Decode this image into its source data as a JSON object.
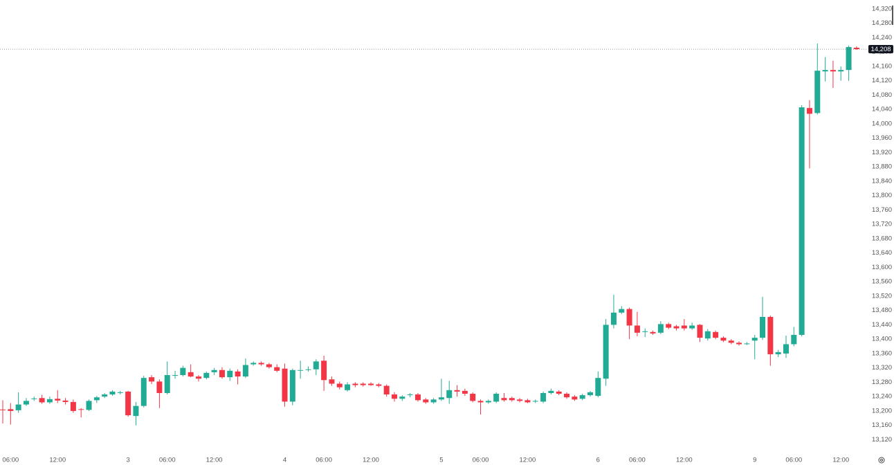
{
  "chart_data": {
    "type": "candlestick",
    "categories": [
      null,
      "06:00",
      null,
      null,
      null,
      null,
      null,
      "12:00",
      null,
      null,
      null,
      null,
      null,
      null,
      null,
      null,
      "3",
      null,
      null,
      null,
      null,
      "06:00",
      null,
      null,
      null,
      null,
      null,
      "12:00",
      null,
      null,
      null,
      null,
      null,
      null,
      null,
      null,
      "4",
      null,
      null,
      null,
      null,
      "06:00",
      null,
      null,
      null,
      null,
      null,
      "12:00",
      null,
      null,
      null,
      null,
      null,
      null,
      null,
      null,
      "5",
      null,
      null,
      null,
      null,
      "06:00",
      null,
      null,
      null,
      null,
      null,
      "12:00",
      null,
      null,
      null,
      null,
      null,
      null,
      null,
      null,
      "6",
      null,
      null,
      null,
      null,
      "06:00",
      null,
      null,
      null,
      null,
      null,
      "12:00",
      null,
      null,
      null,
      null,
      null,
      null,
      null,
      null,
      "9",
      null,
      null,
      null,
      null,
      "06:00",
      null,
      null,
      null,
      null,
      null,
      "12:00",
      null,
      null
    ],
    "open": [
      13204,
      13205,
      13202,
      13218,
      13233,
      13236,
      13224,
      13234,
      13229,
      13225,
      13205,
      13203,
      13230,
      13240,
      13246,
      13252,
      13254,
      13186,
      13214,
      13294,
      13282,
      13250,
      13298,
      13300,
      13308,
      13296,
      13292,
      13308,
      13314,
      13294,
      13310,
      13296,
      13330,
      13334,
      13330,
      13322,
      13318,
      13226,
      13314,
      13316,
      13316,
      13340,
      13288,
      13276,
      13258,
      13276,
      13276,
      13276,
      13274,
      13270,
      13246,
      13234,
      13244,
      13246,
      13232,
      13224,
      13232,
      13236,
      13258,
      13256,
      13248,
      13228,
      13224,
      13226,
      13236,
      13236,
      13232,
      13230,
      13226,
      13226,
      13250,
      13254,
      13248,
      13240,
      13234,
      13244,
      13242,
      13290,
      13440,
      13474,
      13484,
      13438,
      13420,
      13420,
      13418,
      13442,
      13436,
      13438,
      13430,
      13440,
      13402,
      13420,
      13404,
      13396,
      13390,
      13386,
      13396,
      13404,
      13462,
      13358,
      13360,
      13386,
      13412,
      14044,
      14030,
      14146,
      14150,
      14146,
      14150,
      14212
    ],
    "high": [
      13230,
      13222,
      13252,
      13236,
      13240,
      13245,
      13240,
      13258,
      13236,
      13232,
      13208,
      13232,
      13242,
      13250,
      13258,
      13256,
      13256,
      13225,
      13298,
      13300,
      13288,
      13338,
      13312,
      13326,
      13330,
      13300,
      13310,
      13320,
      13322,
      13318,
      13316,
      13346,
      13338,
      13338,
      13334,
      13330,
      13332,
      13318,
      13340,
      13324,
      13344,
      13354,
      13296,
      13282,
      13280,
      13280,
      13280,
      13280,
      13278,
      13274,
      13252,
      13244,
      13250,
      13250,
      13236,
      13236,
      13290,
      13284,
      13272,
      13262,
      13252,
      13232,
      13232,
      13252,
      13250,
      13240,
      13236,
      13234,
      13232,
      13254,
      13262,
      13258,
      13252,
      13244,
      13248,
      13256,
      13310,
      13456,
      13524,
      13492,
      13488,
      13476,
      13430,
      13424,
      13450,
      13446,
      13440,
      13456,
      13446,
      13442,
      13428,
      13424,
      13408,
      13400,
      13394,
      13392,
      13412,
      13518,
      13466,
      13370,
      13410,
      13434,
      14052,
      14066,
      14224,
      14186,
      14176,
      14160,
      14218,
      14216
    ],
    "low": [
      13165,
      13162,
      13195,
      13214,
      13228,
      13220,
      13220,
      13222,
      13218,
      13195,
      13182,
      13200,
      13222,
      13236,
      13242,
      13246,
      13184,
      13160,
      13210,
      13275,
      13208,
      13246,
      13290,
      13296,
      13294,
      13282,
      13288,
      13300,
      13290,
      13284,
      13274,
      13292,
      13326,
      13326,
      13318,
      13308,
      13212,
      13216,
      13290,
      13310,
      13300,
      13256,
      13270,
      13260,
      13254,
      13266,
      13268,
      13270,
      13266,
      13240,
      13226,
      13228,
      13238,
      13226,
      13220,
      13220,
      13228,
      13220,
      13240,
      13242,
      13224,
      13190,
      13220,
      13222,
      13226,
      13226,
      13224,
      13222,
      13222,
      13222,
      13246,
      13244,
      13234,
      13228,
      13230,
      13240,
      13238,
      13270,
      13430,
      13470,
      13400,
      13408,
      13406,
      13412,
      13414,
      13428,
      13424,
      13424,
      13426,
      13392,
      13396,
      13400,
      13392,
      13386,
      13382,
      13384,
      13344,
      13398,
      13326,
      13350,
      13348,
      13380,
      13408,
      13876,
      14026,
      14118,
      14100,
      14120,
      14120,
      14206
    ],
    "close": [
      13202,
      13200,
      13218,
      13228,
      13235,
      13224,
      13233,
      13229,
      13225,
      13200,
      13204,
      13228,
      13238,
      13246,
      13254,
      13252,
      13188,
      13214,
      13292,
      13282,
      13250,
      13300,
      13300,
      13320,
      13296,
      13290,
      13306,
      13314,
      13294,
      13312,
      13296,
      13328,
      13334,
      13330,
      13322,
      13312,
      13226,
      13314,
      13314,
      13316,
      13338,
      13286,
      13276,
      13266,
      13274,
      13272,
      13272,
      13272,
      13270,
      13246,
      13234,
      13240,
      13246,
      13230,
      13224,
      13232,
      13238,
      13258,
      13254,
      13248,
      13228,
      13224,
      13228,
      13248,
      13230,
      13230,
      13228,
      13224,
      13228,
      13250,
      13256,
      13248,
      13238,
      13232,
      13244,
      13252,
      13292,
      13440,
      13474,
      13484,
      13438,
      13418,
      13422,
      13416,
      13442,
      13432,
      13430,
      13430,
      13438,
      13404,
      13422,
      13404,
      13396,
      13390,
      13386,
      13388,
      13404,
      13462,
      13358,
      13364,
      13386,
      13412,
      14046,
      14028,
      14148,
      14150,
      14146,
      14150,
      14214,
      14208
    ],
    "up_color": "#22ab94",
    "down_color": "#f23645",
    "ylim": [
      13088,
      14345
    ],
    "yticks": [
      {
        "value": 13120,
        "label": "13,120"
      },
      {
        "value": 13160,
        "label": "13,160"
      },
      {
        "value": 13200,
        "label": "13,200"
      },
      {
        "value": 13240,
        "label": "13,240"
      },
      {
        "value": 13280,
        "label": "13,280"
      },
      {
        "value": 13320,
        "label": "13,320"
      },
      {
        "value": 13360,
        "label": "13,360"
      },
      {
        "value": 13400,
        "label": "13,400"
      },
      {
        "value": 13440,
        "label": "13,440"
      },
      {
        "value": 13480,
        "label": "13,480"
      },
      {
        "value": 13520,
        "label": "13,520"
      },
      {
        "value": 13560,
        "label": "13,560"
      },
      {
        "value": 13600,
        "label": "13,600"
      },
      {
        "value": 13640,
        "label": "13,640"
      },
      {
        "value": 13680,
        "label": "13,680"
      },
      {
        "value": 13720,
        "label": "13,720"
      },
      {
        "value": 13760,
        "label": "13,760"
      },
      {
        "value": 13800,
        "label": "13,800"
      },
      {
        "value": 13840,
        "label": "13,840"
      },
      {
        "value": 13880,
        "label": "13,880"
      },
      {
        "value": 13920,
        "label": "13,920"
      },
      {
        "value": 13960,
        "label": "13,960"
      },
      {
        "value": 14000,
        "label": "14,000"
      },
      {
        "value": 14040,
        "label": "14,040"
      },
      {
        "value": 14080,
        "label": "14,080"
      },
      {
        "value": 14120,
        "label": "14,120"
      },
      {
        "value": 14160,
        "label": "14,160"
      },
      {
        "value": 14200,
        "label": "14,200"
      },
      {
        "value": 14240,
        "label": "14,240"
      },
      {
        "value": 14280,
        "label": "14,280"
      },
      {
        "value": 14320,
        "label": "14,320"
      }
    ],
    "last_price": {
      "value": 14208,
      "label": "14,208"
    }
  }
}
